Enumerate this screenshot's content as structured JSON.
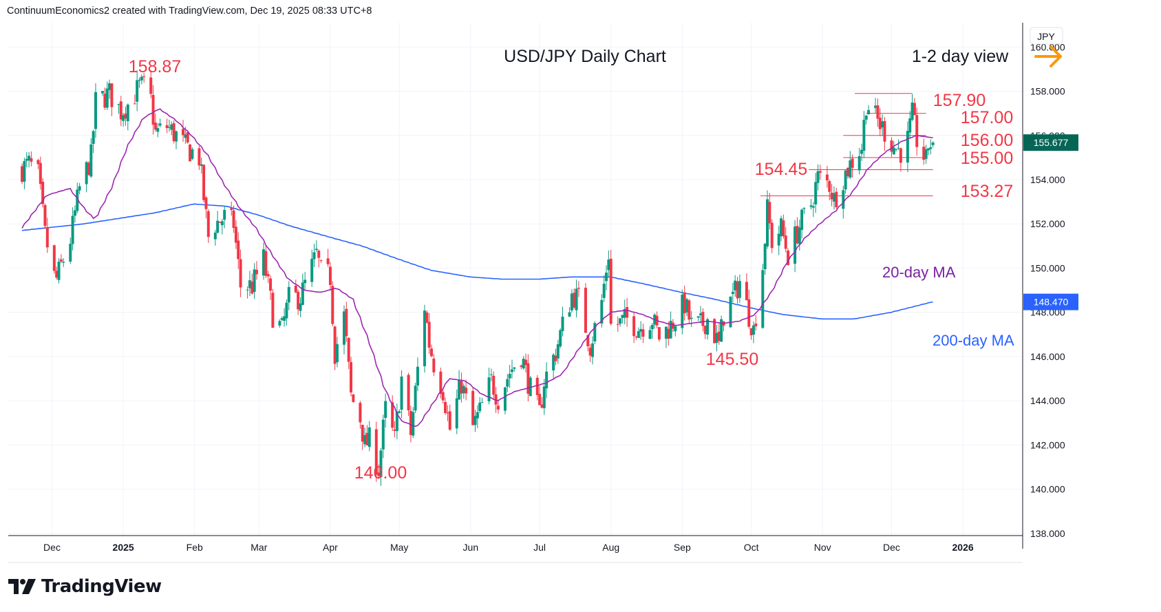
{
  "header": {
    "credit": "ContinuumEconomics2 created with TradingView.com, Dec 19, 2025 08:33 UTC+8"
  },
  "footer": {
    "brand": "TradingView"
  },
  "colors": {
    "up": "#089981",
    "down": "#f23645",
    "ma20": "#9c27b0",
    "ma200": "#2962ff",
    "label_red": "#f23645",
    "arrow": "#ff9800",
    "price_badge": "#056656",
    "ma200_badge": "#2962ff"
  },
  "chart_data": {
    "type": "candlestick",
    "title": "USD/JPY Daily Chart",
    "subtitle": "1-2 day view",
    "currency": "JPY",
    "x_axis_labels": [
      "Dec",
      "2025",
      "Feb",
      "Mar",
      "Apr",
      "May",
      "Jun",
      "Jul",
      "Aug",
      "Sep",
      "Oct",
      "Nov",
      "Dec",
      "2026"
    ],
    "y_axis_labels": [
      "160.000",
      "158.000",
      "156.000",
      "154.000",
      "152.000",
      "150.000",
      "148.000",
      "146.000",
      "144.000",
      "142.000",
      "140.000",
      "138.000"
    ],
    "ylim": [
      137.9,
      161.1
    ],
    "grid": true,
    "current_price": "155.677",
    "ma200_value": "148.470",
    "ma_labels": {
      "ma20": "20-day MA",
      "ma200": "200-day MA"
    },
    "annotations": [
      {
        "text": "158.87",
        "date": "2025-01-10",
        "price": 158.87
      },
      {
        "text": "140.00",
        "date": "2025-04-22",
        "price": 140.0
      },
      {
        "text": "145.50",
        "date": "2025-09-17",
        "price": 145.5
      },
      {
        "text": "157.90",
        "date": "2025-11-20",
        "price": 157.9
      },
      {
        "text": "157.00",
        "date": "2025-12-03",
        "price": 157.0
      },
      {
        "text": "156.00",
        "date": "2025-12-10",
        "price": 156.0
      },
      {
        "text": "155.00",
        "date": "2025-12-10",
        "price": 155.0
      },
      {
        "text": "154.45",
        "date": "2025-11-04",
        "price": 154.45
      },
      {
        "text": "153.27",
        "date": "2025-10-10",
        "price": 153.27
      }
    ],
    "waypoints": [
      [
        "2024-11-18",
        154.5
      ],
      [
        "2024-11-21",
        154.7
      ],
      [
        "2024-11-25",
        154.2
      ],
      [
        "2024-11-28",
        151.5
      ],
      [
        "2024-12-02",
        149.6
      ],
      [
        "2024-12-03",
        149.5
      ],
      [
        "2024-12-09",
        151.3
      ],
      [
        "2024-12-13",
        153.6
      ],
      [
        "2024-12-18",
        155.0
      ],
      [
        "2024-12-20",
        157.5
      ],
      [
        "2024-12-26",
        157.9
      ],
      [
        "2024-12-31",
        157.1
      ],
      [
        "2025-01-03",
        157.4
      ],
      [
        "2025-01-08",
        158.2
      ],
      [
        "2025-01-10",
        158.2
      ],
      [
        "2025-01-13",
        157.6
      ],
      [
        "2025-01-15",
        156.1
      ],
      [
        "2025-01-20",
        156.4
      ],
      [
        "2025-01-24",
        156.0
      ],
      [
        "2025-01-28",
        155.5
      ],
      [
        "2025-02-03",
        155.0
      ],
      [
        "2025-02-07",
        151.4
      ],
      [
        "2025-02-10",
        152.0
      ],
      [
        "2025-02-14",
        152.3
      ],
      [
        "2025-02-18",
        152.0
      ],
      [
        "2025-02-21",
        149.2
      ],
      [
        "2025-02-26",
        149.2
      ],
      [
        "2025-03-03",
        150.4
      ],
      [
        "2025-03-07",
        147.9
      ],
      [
        "2025-03-11",
        147.2
      ],
      [
        "2025-03-14",
        148.6
      ],
      [
        "2025-03-19",
        148.7
      ],
      [
        "2025-03-26",
        150.6
      ],
      [
        "2025-03-28",
        149.8
      ],
      [
        "2025-04-01",
        149.6
      ],
      [
        "2025-04-03",
        146.2
      ],
      [
        "2025-04-07",
        147.8
      ],
      [
        "2025-04-10",
        144.2
      ],
      [
        "2025-04-14",
        143.2
      ],
      [
        "2025-04-16",
        142.0
      ],
      [
        "2025-04-18",
        142.2
      ],
      [
        "2025-04-22",
        140.9
      ],
      [
        "2025-04-25",
        143.6
      ],
      [
        "2025-04-29",
        142.2
      ],
      [
        "2025-05-02",
        145.0
      ],
      [
        "2025-05-06",
        142.5
      ],
      [
        "2025-05-09",
        145.4
      ],
      [
        "2025-05-12",
        148.3
      ],
      [
        "2025-05-14",
        146.6
      ],
      [
        "2025-05-16",
        145.7
      ],
      [
        "2025-05-20",
        144.5
      ],
      [
        "2025-05-23",
        142.7
      ],
      [
        "2025-05-28",
        144.8
      ],
      [
        "2025-06-02",
        142.8
      ],
      [
        "2025-06-05",
        143.5
      ],
      [
        "2025-06-10",
        144.9
      ],
      [
        "2025-06-13",
        144.1
      ],
      [
        "2025-06-18",
        145.3
      ],
      [
        "2025-06-23",
        146.1
      ],
      [
        "2025-06-27",
        144.5
      ],
      [
        "2025-07-01",
        143.4
      ],
      [
        "2025-07-03",
        144.9
      ],
      [
        "2025-07-08",
        146.2
      ],
      [
        "2025-07-11",
        147.4
      ],
      [
        "2025-07-15",
        148.8
      ],
      [
        "2025-07-18",
        148.6
      ],
      [
        "2025-07-23",
        146.5
      ],
      [
        "2025-07-28",
        148.5
      ],
      [
        "2025-07-31",
        150.7
      ],
      [
        "2025-08-01",
        147.4
      ],
      [
        "2025-08-05",
        147.5
      ],
      [
        "2025-08-08",
        147.7
      ],
      [
        "2025-08-13",
        147.3
      ],
      [
        "2025-08-19",
        147.7
      ],
      [
        "2025-08-22",
        146.9
      ],
      [
        "2025-08-27",
        147.4
      ],
      [
        "2025-09-02",
        148.4
      ],
      [
        "2025-09-05",
        147.4
      ],
      [
        "2025-09-09",
        147.4
      ],
      [
        "2025-09-12",
        147.7
      ],
      [
        "2025-09-17",
        146.5
      ],
      [
        "2025-09-19",
        147.9
      ],
      [
        "2025-09-24",
        148.9
      ],
      [
        "2025-09-26",
        149.4
      ],
      [
        "2025-09-30",
        147.9
      ],
      [
        "2025-10-02",
        147.2
      ],
      [
        "2025-10-06",
        150.1
      ],
      [
        "2025-10-08",
        152.6
      ],
      [
        "2025-10-10",
        151.2
      ],
      [
        "2025-10-14",
        151.8
      ],
      [
        "2025-10-17",
        150.6
      ],
      [
        "2025-10-22",
        151.9
      ],
      [
        "2025-10-27",
        152.9
      ],
      [
        "2025-10-30",
        154.1
      ],
      [
        "2025-11-04",
        153.8
      ],
      [
        "2025-11-06",
        153.1
      ],
      [
        "2025-11-10",
        154.1
      ],
      [
        "2025-11-13",
        154.7
      ],
      [
        "2025-11-18",
        155.5
      ],
      [
        "2025-11-20",
        157.5
      ],
      [
        "2025-11-24",
        156.8
      ],
      [
        "2025-11-28",
        156.2
      ],
      [
        "2025-12-02",
        155.5
      ],
      [
        "2025-12-05",
        155.3
      ],
      [
        "2025-12-08",
        155.8
      ],
      [
        "2025-12-10",
        156.9
      ],
      [
        "2025-12-12",
        155.8
      ],
      [
        "2025-12-16",
        154.8
      ],
      [
        "2025-12-17",
        155.6
      ],
      [
        "2025-12-19",
        155.68
      ]
    ],
    "ma20_points": [
      [
        "2024-11-18",
        151.8
      ],
      [
        "2024-11-29",
        153.3
      ],
      [
        "2024-12-09",
        153.6
      ],
      [
        "2024-12-16",
        152.6
      ],
      [
        "2024-12-20",
        152.2
      ],
      [
        "2024-12-27",
        153.6
      ],
      [
        "2025-01-03",
        155.5
      ],
      [
        "2025-01-10",
        156.8
      ],
      [
        "2025-01-17",
        157.2
      ],
      [
        "2025-01-24",
        156.7
      ],
      [
        "2025-01-31",
        156.0
      ],
      [
        "2025-02-07",
        155.1
      ],
      [
        "2025-02-14",
        153.8
      ],
      [
        "2025-02-21",
        152.7
      ],
      [
        "2025-02-28",
        151.8
      ],
      [
        "2025-03-07",
        150.6
      ],
      [
        "2025-03-14",
        149.5
      ],
      [
        "2025-03-21",
        149.0
      ],
      [
        "2025-03-28",
        148.9
      ],
      [
        "2025-04-04",
        149.1
      ],
      [
        "2025-04-11",
        148.6
      ],
      [
        "2025-04-18",
        146.7
      ],
      [
        "2025-04-25",
        144.5
      ],
      [
        "2025-05-02",
        143.1
      ],
      [
        "2025-05-09",
        142.8
      ],
      [
        "2025-05-16",
        143.9
      ],
      [
        "2025-05-23",
        145.0
      ],
      [
        "2025-05-30",
        144.9
      ],
      [
        "2025-06-06",
        144.3
      ],
      [
        "2025-06-13",
        144.0
      ],
      [
        "2025-06-20",
        144.4
      ],
      [
        "2025-06-27",
        144.6
      ],
      [
        "2025-07-04",
        144.8
      ],
      [
        "2025-07-11",
        145.2
      ],
      [
        "2025-07-18",
        146.3
      ],
      [
        "2025-07-25",
        147.3
      ],
      [
        "2025-08-01",
        148.0
      ],
      [
        "2025-08-08",
        148.1
      ],
      [
        "2025-08-15",
        147.9
      ],
      [
        "2025-08-22",
        147.6
      ],
      [
        "2025-08-29",
        147.4
      ],
      [
        "2025-09-05",
        147.5
      ],
      [
        "2025-09-12",
        147.6
      ],
      [
        "2025-09-19",
        147.5
      ],
      [
        "2025-09-26",
        147.6
      ],
      [
        "2025-10-03",
        147.9
      ],
      [
        "2025-10-10",
        148.9
      ],
      [
        "2025-10-17",
        150.3
      ],
      [
        "2025-10-24",
        151.3
      ],
      [
        "2025-10-31",
        152.0
      ],
      [
        "2025-11-07",
        152.6
      ],
      [
        "2025-11-14",
        153.4
      ],
      [
        "2025-11-21",
        154.5
      ],
      [
        "2025-11-28",
        155.2
      ],
      [
        "2025-12-05",
        155.7
      ],
      [
        "2025-12-12",
        156.0
      ],
      [
        "2025-12-19",
        155.9
      ]
    ],
    "ma200_points": [
      [
        "2024-11-18",
        151.7
      ],
      [
        "2024-12-15",
        152.0
      ],
      [
        "2025-01-15",
        152.5
      ],
      [
        "2025-02-01",
        152.9
      ],
      [
        "2025-02-15",
        152.8
      ],
      [
        "2025-03-01",
        152.4
      ],
      [
        "2025-03-15",
        151.9
      ],
      [
        "2025-04-01",
        151.4
      ],
      [
        "2025-04-15",
        151.0
      ],
      [
        "2025-05-01",
        150.4
      ],
      [
        "2025-05-15",
        149.9
      ],
      [
        "2025-06-01",
        149.6
      ],
      [
        "2025-06-15",
        149.5
      ],
      [
        "2025-07-01",
        149.5
      ],
      [
        "2025-07-15",
        149.6
      ],
      [
        "2025-08-01",
        149.6
      ],
      [
        "2025-08-15",
        149.3
      ],
      [
        "2025-09-01",
        148.9
      ],
      [
        "2025-09-15",
        148.6
      ],
      [
        "2025-10-01",
        148.2
      ],
      [
        "2025-10-15",
        147.9
      ],
      [
        "2025-11-01",
        147.7
      ],
      [
        "2025-11-15",
        147.7
      ],
      [
        "2025-12-01",
        148.0
      ],
      [
        "2025-12-19",
        148.47
      ]
    ]
  }
}
